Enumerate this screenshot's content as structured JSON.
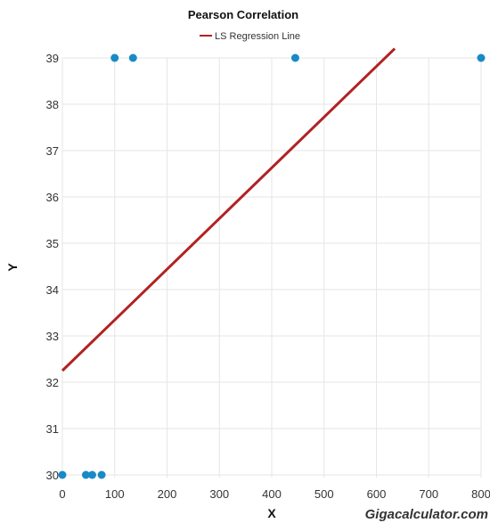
{
  "chart_data": {
    "type": "scatter",
    "title": "Pearson Correlation",
    "xlabel": "X",
    "ylabel": "Y",
    "xlim": [
      0,
      800
    ],
    "ylim": [
      30,
      39
    ],
    "x_ticks": [
      0,
      100,
      200,
      300,
      400,
      500,
      600,
      700,
      800
    ],
    "y_ticks": [
      30,
      31,
      32,
      33,
      34,
      35,
      36,
      37,
      38,
      39
    ],
    "grid": true,
    "legend_position": "top-center",
    "points": [
      {
        "x": 0,
        "y": 30
      },
      {
        "x": 45,
        "y": 30
      },
      {
        "x": 57,
        "y": 30
      },
      {
        "x": 75,
        "y": 30
      },
      {
        "x": 100,
        "y": 39
      },
      {
        "x": 135,
        "y": 39
      },
      {
        "x": 445,
        "y": 39
      },
      {
        "x": 800,
        "y": 39
      }
    ],
    "regression_line": {
      "name": "LS Regression Line",
      "x": [
        0,
        635
      ],
      "y": [
        32.25,
        39.2
      ]
    },
    "colors": {
      "points": "#1a8ac6",
      "line": "#b22222",
      "grid": "#e6e6e6"
    },
    "watermark": "Gigacalculator.com"
  }
}
